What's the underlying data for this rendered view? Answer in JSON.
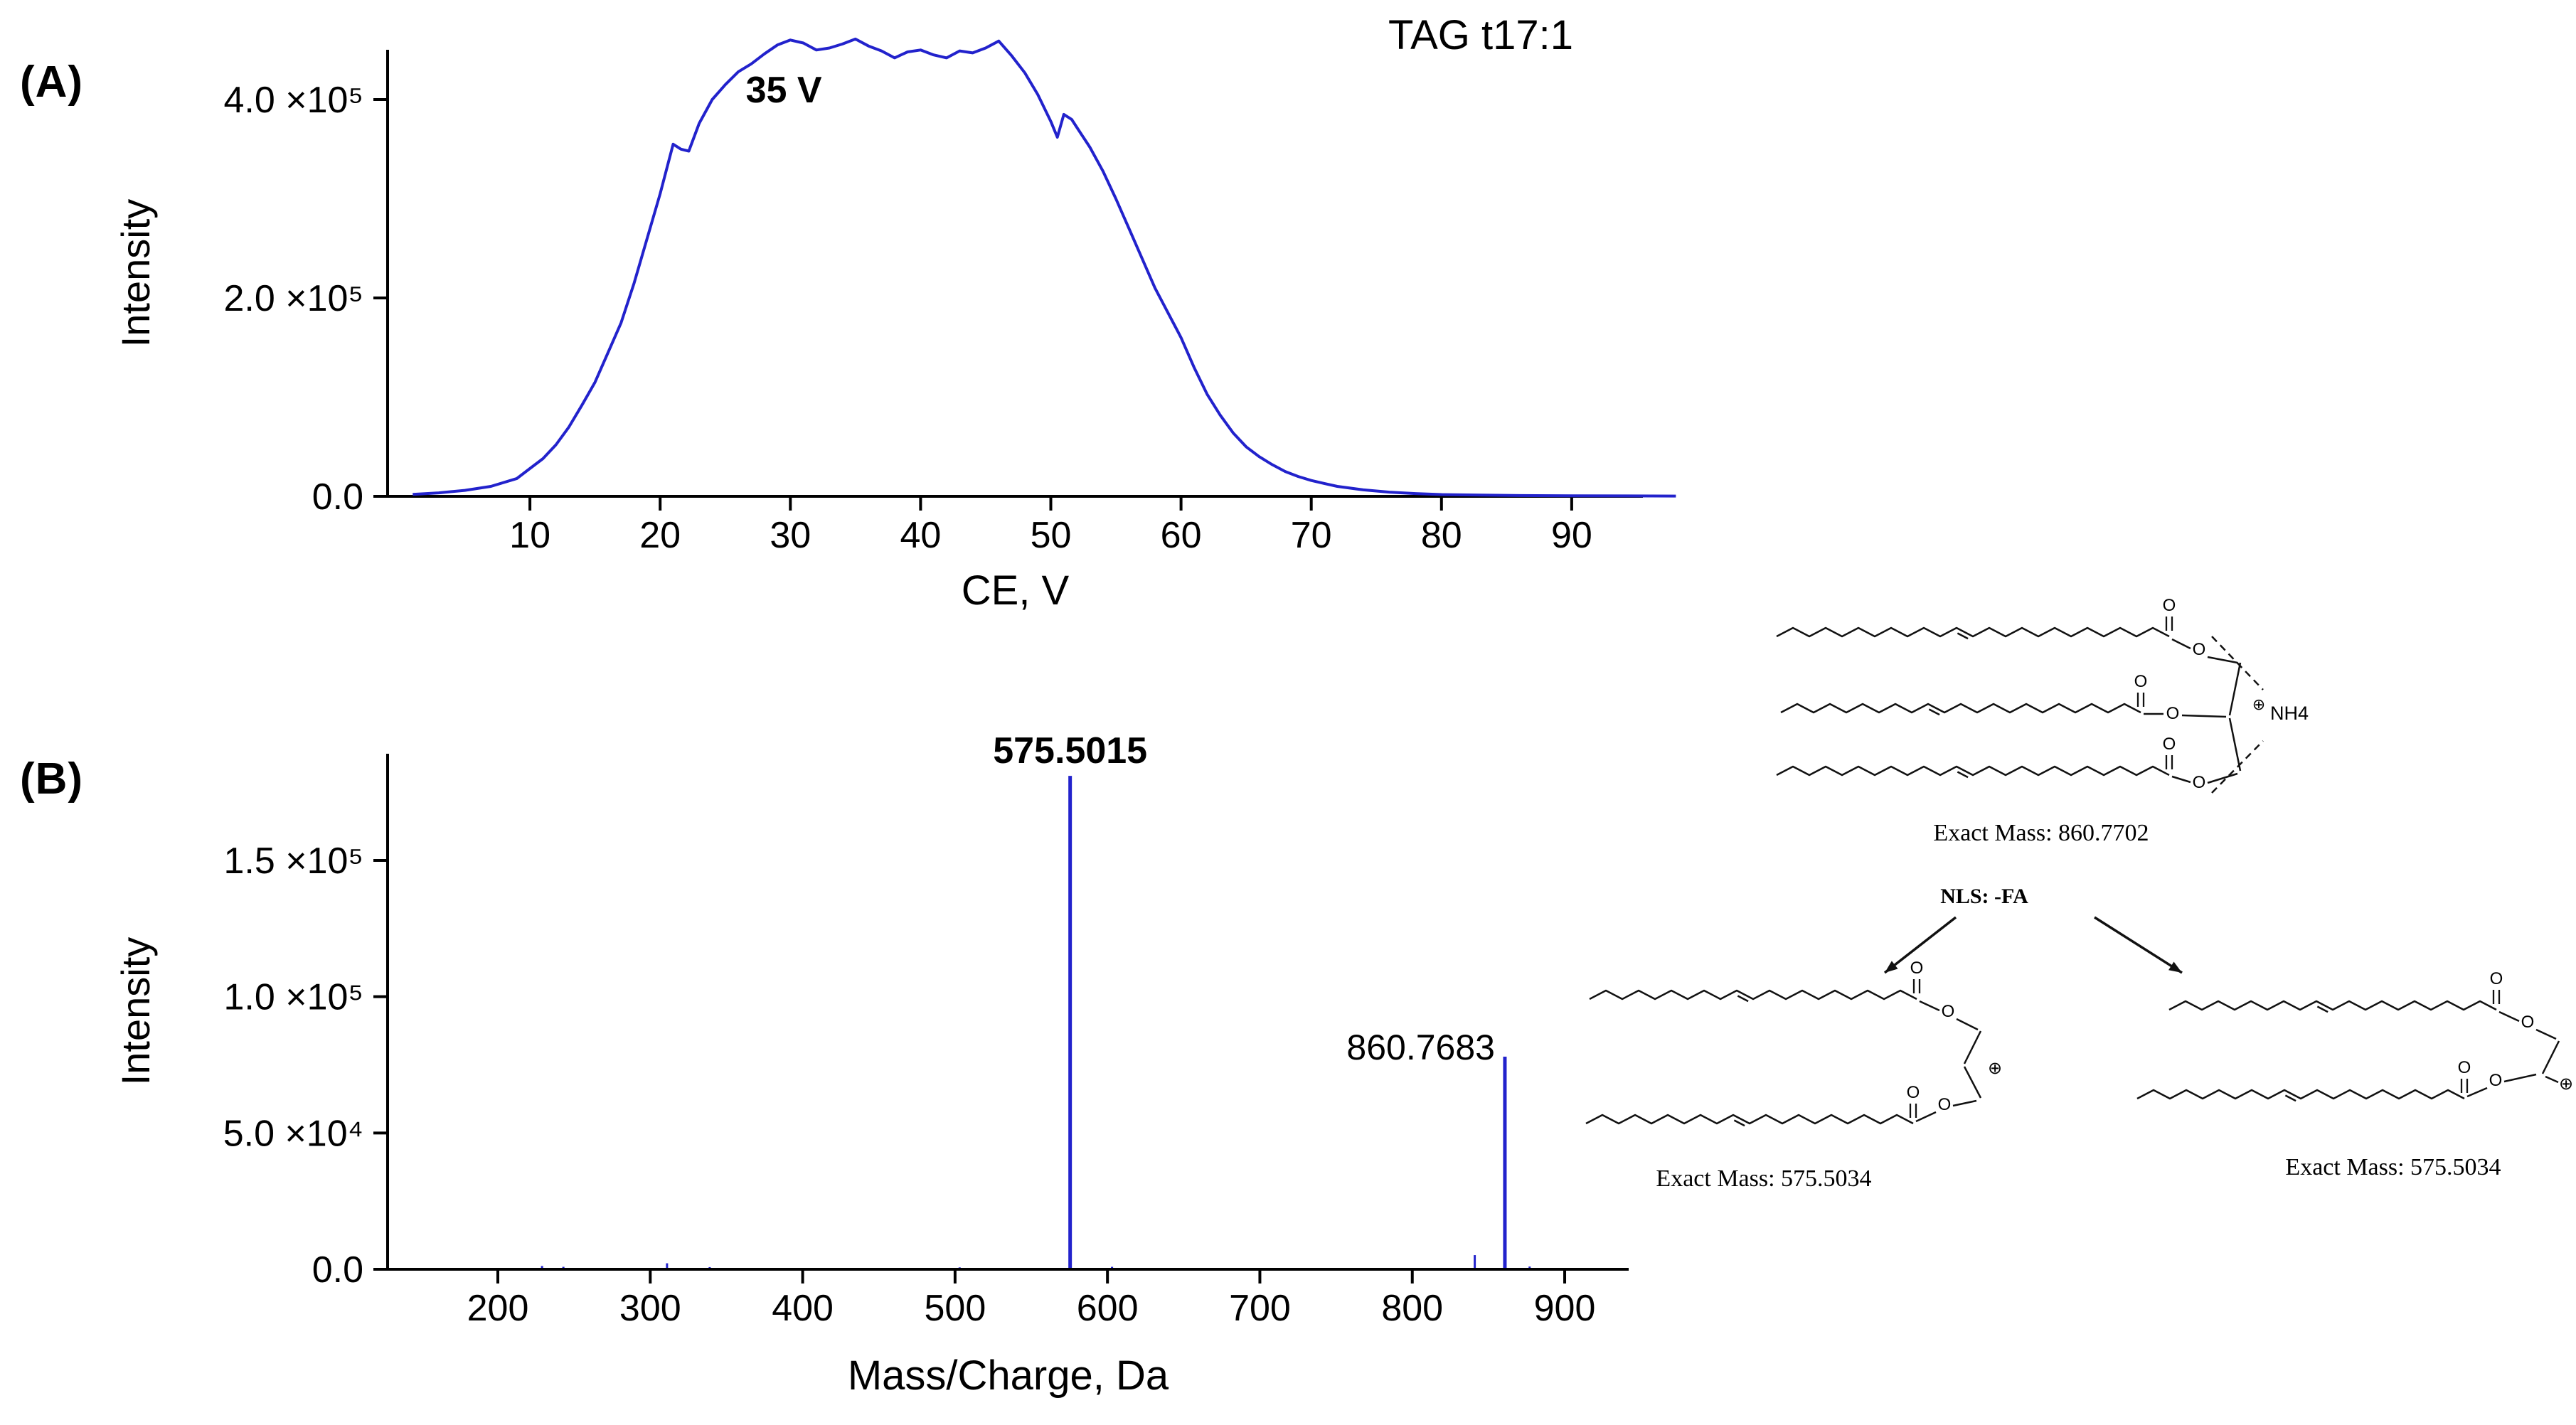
{
  "figure": {
    "panel_a_label": "(A)",
    "panel_b_label": "(B)",
    "title": "TAG t17:1"
  },
  "colors": {
    "trace": "#2222CC",
    "axis": "#000000",
    "structure": "#111111"
  },
  "chart_data": [
    {
      "type": "line",
      "id": "breakdown_curve",
      "title": "TAG t17:1",
      "xlabel": "CE, V",
      "ylabel": "Intensity",
      "xlim": [
        0,
        98
      ],
      "ylim": [
        0,
        480000
      ],
      "grid": false,
      "legend": false,
      "xticks": [
        {
          "v": 10,
          "label": "10"
        },
        {
          "v": 20,
          "label": "20"
        },
        {
          "v": 30,
          "label": "30"
        },
        {
          "v": 40,
          "label": "40"
        },
        {
          "v": 50,
          "label": "50"
        },
        {
          "v": 60,
          "label": "60"
        },
        {
          "v": 70,
          "label": "70"
        },
        {
          "v": 80,
          "label": "80"
        },
        {
          "v": 90,
          "label": "90"
        }
      ],
      "yticks": [
        {
          "v": 0,
          "label": "0.0"
        },
        {
          "v": 200000,
          "label": "2.0 ×10⁵"
        },
        {
          "v": 400000,
          "label": "4.0 ×10⁵"
        }
      ],
      "annotation": {
        "text": "35 V",
        "x": 29.5,
        "y": 397000
      },
      "points": [
        [
          1,
          2000
        ],
        [
          3,
          3500
        ],
        [
          5,
          6000
        ],
        [
          7,
          10000
        ],
        [
          9,
          18000
        ],
        [
          10,
          28000
        ],
        [
          11,
          38000
        ],
        [
          12,
          52000
        ],
        [
          13,
          70000
        ],
        [
          14,
          92000
        ],
        [
          15,
          115000
        ],
        [
          16,
          145000
        ],
        [
          17,
          175000
        ],
        [
          18,
          215000
        ],
        [
          19,
          260000
        ],
        [
          20,
          305000
        ],
        [
          21,
          355000
        ],
        [
          21.6,
          350000
        ],
        [
          22.2,
          348000
        ],
        [
          23,
          376000
        ],
        [
          24,
          400000
        ],
        [
          25,
          415000
        ],
        [
          26,
          428000
        ],
        [
          27,
          436000
        ],
        [
          28,
          446000
        ],
        [
          29,
          455000
        ],
        [
          30,
          460000
        ],
        [
          31,
          457000
        ],
        [
          32,
          450000
        ],
        [
          33,
          452000
        ],
        [
          34,
          456000
        ],
        [
          35,
          461000
        ],
        [
          36,
          454000
        ],
        [
          37,
          449000
        ],
        [
          38,
          442000
        ],
        [
          39,
          448000
        ],
        [
          40,
          450000
        ],
        [
          41,
          445000
        ],
        [
          42,
          442000
        ],
        [
          43,
          449000
        ],
        [
          44,
          447000
        ],
        [
          45,
          452000
        ],
        [
          46,
          459000
        ],
        [
          47,
          444000
        ],
        [
          48,
          427000
        ],
        [
          49,
          405000
        ],
        [
          50,
          378000
        ],
        [
          50.5,
          362000
        ],
        [
          51,
          385000
        ],
        [
          51.6,
          380000
        ],
        [
          52,
          372000
        ],
        [
          53,
          352000
        ],
        [
          54,
          328000
        ],
        [
          55,
          300000
        ],
        [
          56,
          270000
        ],
        [
          57,
          240000
        ],
        [
          58,
          210000
        ],
        [
          59,
          185000
        ],
        [
          60,
          160000
        ],
        [
          61,
          130000
        ],
        [
          62,
          103000
        ],
        [
          63,
          82000
        ],
        [
          64,
          64000
        ],
        [
          65,
          50000
        ],
        [
          66,
          40000
        ],
        [
          67,
          32000
        ],
        [
          68,
          25000
        ],
        [
          69,
          20000
        ],
        [
          70,
          16000
        ],
        [
          71,
          13000
        ],
        [
          72,
          10000
        ],
        [
          74,
          6500
        ],
        [
          76,
          4200
        ],
        [
          78,
          2800
        ],
        [
          80,
          1800
        ],
        [
          83,
          1200
        ],
        [
          86,
          800
        ],
        [
          90,
          500
        ],
        [
          94,
          400
        ],
        [
          98,
          300
        ]
      ]
    },
    {
      "type": "bar",
      "id": "ms2_spectrum",
      "xlabel": "Mass/Charge, Da",
      "ylabel": "Intensity",
      "xlim": [
        128,
        942
      ],
      "ylim": [
        0,
        190000
      ],
      "grid": false,
      "legend": false,
      "xticks": [
        {
          "v": 200,
          "label": "200"
        },
        {
          "v": 300,
          "label": "300"
        },
        {
          "v": 400,
          "label": "400"
        },
        {
          "v": 500,
          "label": "500"
        },
        {
          "v": 600,
          "label": "600"
        },
        {
          "v": 700,
          "label": "700"
        },
        {
          "v": 800,
          "label": "800"
        },
        {
          "v": 900,
          "label": "900"
        }
      ],
      "yticks": [
        {
          "v": 0,
          "label": "0.0"
        },
        {
          "v": 50000,
          "label": "5.0 ×10⁴"
        },
        {
          "v": 100000,
          "label": "1.0 ×10⁵"
        },
        {
          "v": 150000,
          "label": "1.5 ×10⁵"
        }
      ],
      "peaks": [
        {
          "mz": 229,
          "intensity": 1200
        },
        {
          "mz": 243,
          "intensity": 900
        },
        {
          "mz": 311,
          "intensity": 2200
        },
        {
          "mz": 339,
          "intensity": 800
        },
        {
          "mz": 503,
          "intensity": 700
        },
        {
          "mz": 575.5015,
          "intensity": 181000,
          "label": "575.5015",
          "bold": true,
          "label_position": "above"
        },
        {
          "mz": 603,
          "intensity": 900
        },
        {
          "mz": 841,
          "intensity": 5200
        },
        {
          "mz": 860.7683,
          "intensity": 78000,
          "label": "860.7683",
          "bold": false,
          "label_position": "left"
        },
        {
          "mz": 877,
          "intensity": 1000
        }
      ]
    }
  ],
  "structures": {
    "atom_oxygen": "O",
    "charge_symbol": "⊕",
    "adduct_label": "NH4",
    "precursor_exact_mass": "Exact Mass: 860.7702",
    "neutral_loss_label": "NLS: -FA",
    "fragment_left_exact_mass": "Exact Mass: 575.5034",
    "fragment_right_exact_mass": "Exact Mass: 575.5034"
  }
}
